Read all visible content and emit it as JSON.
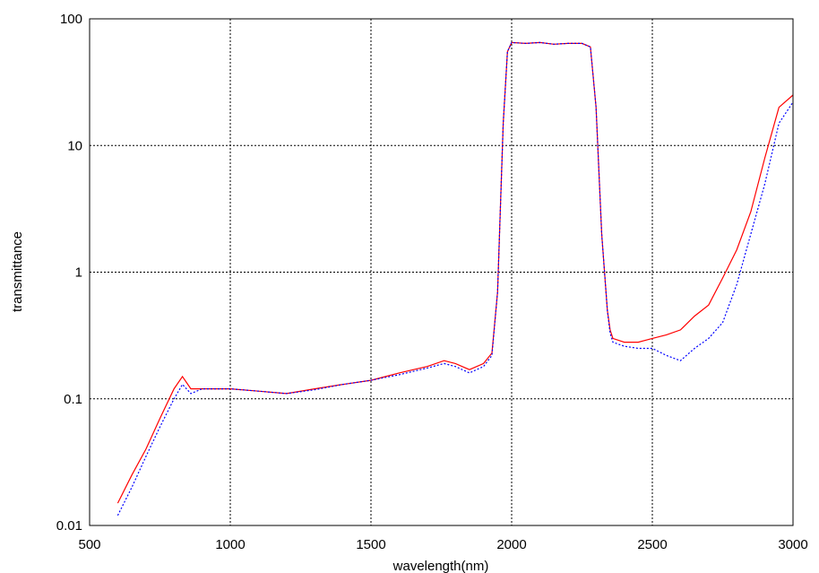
{
  "chart_data": {
    "type": "line",
    "title": "",
    "xlabel": "wavelength(nm)",
    "ylabel": "transmittance",
    "xlim": [
      500,
      3000
    ],
    "ylim": [
      0.01,
      100
    ],
    "yscale": "log",
    "grid": true,
    "x_ticks": [
      500,
      1000,
      1500,
      2000,
      2500,
      3000
    ],
    "x_tick_labels": [
      "500",
      "1000",
      "1500",
      "2000",
      "2500",
      "3000"
    ],
    "y_ticks": [
      0.01,
      0.1,
      1,
      10,
      100
    ],
    "y_tick_labels": [
      "0.01",
      "0.1",
      "1",
      "10",
      "100"
    ],
    "series": [
      {
        "color": "#ff0000",
        "style": "solid",
        "x": [
          600,
          650,
          700,
          750,
          800,
          830,
          860,
          900,
          950,
          1000,
          1100,
          1200,
          1300,
          1400,
          1500,
          1600,
          1700,
          1760,
          1800,
          1850,
          1900,
          1930,
          1950,
          1970,
          1985,
          2000,
          2050,
          2100,
          2150,
          2200,
          2250,
          2280,
          2300,
          2320,
          2340,
          2350,
          2360,
          2400,
          2450,
          2500,
          2550,
          2600,
          2650,
          2700,
          2750,
          2800,
          2850,
          2900,
          2950,
          3000
        ],
        "y": [
          0.015,
          0.025,
          0.04,
          0.07,
          0.12,
          0.15,
          0.12,
          0.12,
          0.12,
          0.12,
          0.115,
          0.11,
          0.12,
          0.13,
          0.14,
          0.16,
          0.18,
          0.2,
          0.19,
          0.17,
          0.19,
          0.23,
          0.7,
          15,
          55,
          65,
          64,
          65,
          63,
          64,
          64,
          60,
          20,
          2,
          0.5,
          0.35,
          0.3,
          0.28,
          0.28,
          0.3,
          0.32,
          0.35,
          0.45,
          0.55,
          0.9,
          1.5,
          3,
          8,
          20,
          25
        ]
      },
      {
        "color": "#0000ff",
        "style": "dotted",
        "x": [
          600,
          650,
          700,
          750,
          800,
          830,
          860,
          900,
          950,
          1000,
          1100,
          1200,
          1300,
          1400,
          1500,
          1600,
          1700,
          1760,
          1800,
          1850,
          1900,
          1930,
          1950,
          1970,
          1985,
          2000,
          2050,
          2100,
          2150,
          2200,
          2250,
          2280,
          2300,
          2320,
          2340,
          2350,
          2360,
          2400,
          2450,
          2500,
          2550,
          2600,
          2650,
          2700,
          2750,
          2800,
          2850,
          2900,
          2950,
          3000
        ],
        "y": [
          0.012,
          0.02,
          0.035,
          0.06,
          0.1,
          0.13,
          0.11,
          0.12,
          0.12,
          0.12,
          0.115,
          0.11,
          0.118,
          0.13,
          0.14,
          0.155,
          0.175,
          0.19,
          0.18,
          0.16,
          0.18,
          0.22,
          0.7,
          15,
          55,
          65,
          64,
          65,
          63,
          64,
          64,
          60,
          20,
          2,
          0.5,
          0.33,
          0.28,
          0.26,
          0.25,
          0.25,
          0.22,
          0.2,
          0.25,
          0.3,
          0.4,
          0.8,
          2,
          5,
          15,
          22
        ]
      }
    ]
  }
}
